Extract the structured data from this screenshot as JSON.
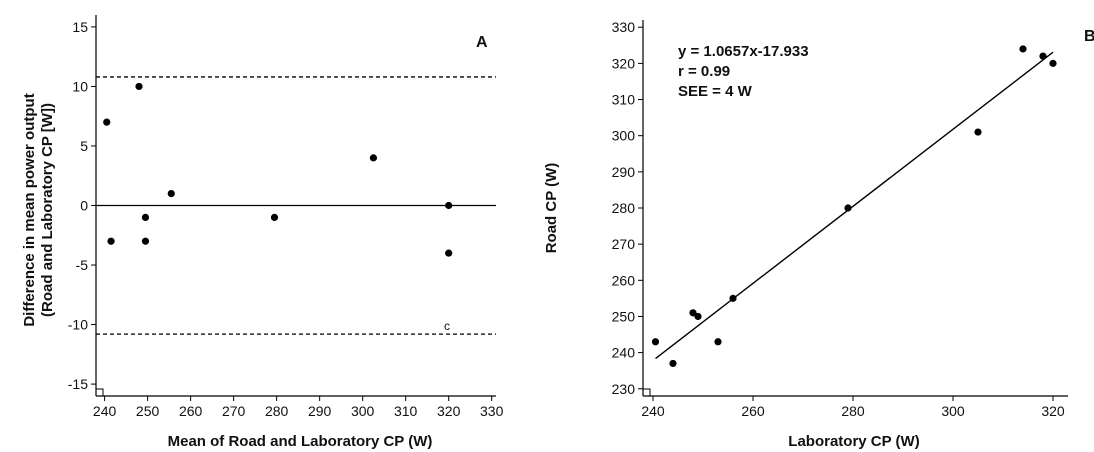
{
  "chart_data": [
    {
      "type": "scatter",
      "panel_label": "A",
      "xlabel": "Mean of Road and Laboratory CP (W)",
      "ylabel": [
        "Difference in mean power output",
        "(Road and Laboratory CP [W])"
      ],
      "xlim": [
        238,
        331
      ],
      "ylim": [
        -16,
        16
      ],
      "xticks": [
        240,
        250,
        260,
        270,
        280,
        290,
        300,
        310,
        320,
        330
      ],
      "yticks": [
        -15,
        -10,
        -5,
        0,
        5,
        10,
        15
      ],
      "reference_lines": [
        {
          "y": 0,
          "style": "solid"
        },
        {
          "y": 10.8,
          "style": "dashed"
        },
        {
          "y": -10.8,
          "style": "dashed"
        }
      ],
      "annotation": "c",
      "points": [
        {
          "x": 240.5,
          "y": 7
        },
        {
          "x": 241.5,
          "y": -3
        },
        {
          "x": 248,
          "y": 10
        },
        {
          "x": 249.5,
          "y": -1
        },
        {
          "x": 249.5,
          "y": -3
        },
        {
          "x": 255.5,
          "y": 1
        },
        {
          "x": 279.5,
          "y": -1
        },
        {
          "x": 302.5,
          "y": 4
        },
        {
          "x": 320,
          "y": 0
        },
        {
          "x": 320,
          "y": -4
        }
      ]
    },
    {
      "type": "scatter",
      "panel_label": "B",
      "xlabel": "Laboratory CP (W)",
      "ylabel": "Road CP (W)",
      "xlim": [
        238,
        323
      ],
      "ylim": [
        228,
        332
      ],
      "xticks": [
        240,
        260,
        280,
        300,
        320
      ],
      "yticks": [
        230,
        240,
        250,
        260,
        270,
        280,
        290,
        300,
        310,
        320,
        330
      ],
      "equation": "y = 1.0657x-17.933",
      "r_text": "r = 0.99",
      "see_text": "SEE = 4 W",
      "fit_line": {
        "slope": 1.0657,
        "intercept": -17.933,
        "x_range": [
          240.5,
          320
        ]
      },
      "points": [
        {
          "x": 240.5,
          "y": 243
        },
        {
          "x": 244,
          "y": 237
        },
        {
          "x": 248,
          "y": 251
        },
        {
          "x": 249,
          "y": 250
        },
        {
          "x": 253,
          "y": 243
        },
        {
          "x": 256,
          "y": 255
        },
        {
          "x": 279,
          "y": 280
        },
        {
          "x": 305,
          "y": 301
        },
        {
          "x": 314,
          "y": 324
        },
        {
          "x": 318,
          "y": 322
        },
        {
          "x": 320,
          "y": 320
        }
      ]
    }
  ]
}
